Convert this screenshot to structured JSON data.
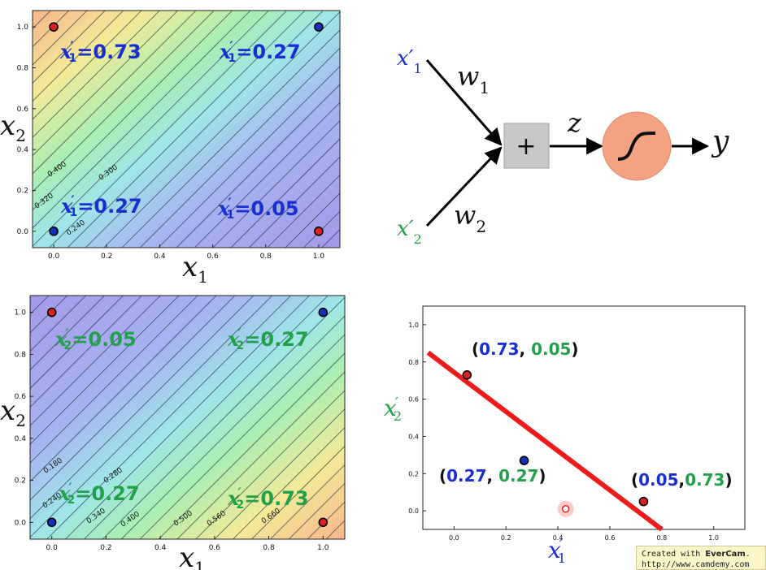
{
  "colors": {
    "red_point": "#e02020",
    "blue_point": "#1030c0",
    "blue_text": "#1a2fd0",
    "green_text": "#22a04a",
    "line_red": "#ee1b1b",
    "adder_fill": "#c8c8c8",
    "sigmoid_fill": "#f4a284"
  },
  "chart_data": [
    {
      "id": "top_left_contour",
      "type": "heatmap",
      "xlabel": "x1",
      "ylabel": "x2",
      "xlim": [
        -0.08,
        1.08
      ],
      "ylim": [
        -0.08,
        1.08
      ],
      "x_ticks": [
        "0.0",
        "0.2",
        "0.4",
        "0.6",
        "0.8",
        "1.0"
      ],
      "y_ticks": [
        "0.0",
        "0.2",
        "0.4",
        "0.6",
        "0.8",
        "1.0"
      ],
      "contour_labels": [
        "0.400",
        "0.300",
        "0.320",
        "0.240"
      ],
      "points": [
        {
          "x": 0,
          "y": 1,
          "color": "red"
        },
        {
          "x": 1,
          "y": 1,
          "color": "blue"
        },
        {
          "x": 0,
          "y": 0,
          "color": "blue"
        },
        {
          "x": 1,
          "y": 0,
          "color": "red"
        }
      ],
      "annotations": [
        {
          "sub": "1",
          "value": "0.73"
        },
        {
          "sub": "1",
          "value": "0.27"
        },
        {
          "sub": "1",
          "value": "0.27"
        },
        {
          "sub": "1",
          "value": "0.05"
        }
      ]
    },
    {
      "id": "bottom_left_contour",
      "type": "heatmap",
      "xlabel": "x1",
      "ylabel": "x2",
      "xlim": [
        -0.08,
        1.08
      ],
      "ylim": [
        -0.08,
        1.08
      ],
      "x_ticks": [
        "0.0",
        "0.2",
        "0.4",
        "0.6",
        "0.8",
        "1.0"
      ],
      "y_ticks": [
        "0.0",
        "0.2",
        "0.4",
        "0.6",
        "0.8",
        "1.0"
      ],
      "contour_labels": [
        "0.180",
        "0.280",
        "0.240",
        "0.340",
        "0.400",
        "0.500",
        "0.560",
        "0.660"
      ],
      "points": [
        {
          "x": 0,
          "y": 1,
          "color": "red"
        },
        {
          "x": 1,
          "y": 1,
          "color": "blue"
        },
        {
          "x": 0,
          "y": 0,
          "color": "blue"
        },
        {
          "x": 1,
          "y": 0,
          "color": "red"
        }
      ],
      "annotations": [
        {
          "sub": "2",
          "value": "0.05"
        },
        {
          "sub": "2",
          "value": "0.27"
        },
        {
          "sub": "2",
          "value": "0.27"
        },
        {
          "sub": "2",
          "value": "0.73"
        }
      ]
    },
    {
      "id": "bottom_right_scatter",
      "type": "scatter",
      "xlabel": "x'1",
      "ylabel": "x'2",
      "xlim": [
        -0.12,
        1.12
      ],
      "ylim": [
        -0.1,
        1.1
      ],
      "x_ticks": [
        "0.0",
        "0.2",
        "0.4",
        "0.6",
        "0.8",
        "1.0"
      ],
      "y_ticks": [
        "0.0",
        "0.2",
        "0.4",
        "0.6",
        "0.8",
        "1.0"
      ],
      "points": [
        {
          "x": 0.05,
          "y": 0.73,
          "color": "red"
        },
        {
          "x": 0.27,
          "y": 0.27,
          "color": "blue"
        },
        {
          "x": 0.73,
          "y": 0.05,
          "color": "red"
        }
      ],
      "cursor_point": {
        "x": 0.43,
        "y": 0.01
      },
      "decision_line": [
        {
          "x": -0.1,
          "y": 0.85
        },
        {
          "x": 0.8,
          "y": -0.1
        }
      ],
      "point_labels": [
        {
          "a": "0.73",
          "b": "0.05",
          "sep": ", "
        },
        {
          "a": "0.27",
          "b": "0.27",
          "sep": ", "
        },
        {
          "a": "0.05",
          "b": "0.73",
          "sep": ","
        }
      ]
    }
  ],
  "network": {
    "input1": "x′",
    "input1_sub": "1",
    "input2": "x′",
    "input2_sub": "2",
    "w1": "w",
    "w1_sub": "1",
    "w2": "w",
    "w2_sub": "2",
    "adder": "+",
    "z": "z",
    "y": "y"
  },
  "watermark": {
    "line1_prefix": "Created with ",
    "line1_brand": "EverCam",
    "line1_suffix": ".",
    "line2": "http://www.camdemy.com"
  }
}
